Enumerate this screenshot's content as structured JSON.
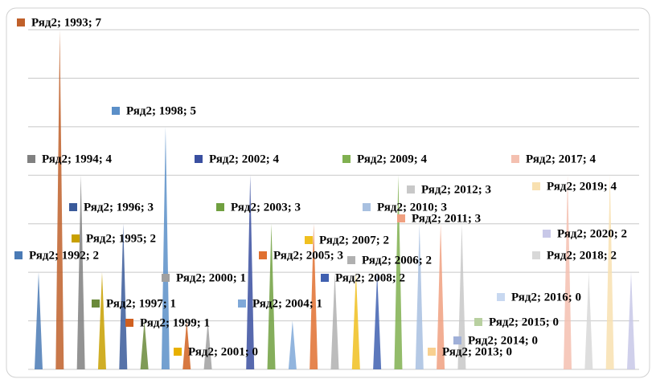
{
  "chart_data": {
    "type": "spike",
    "categories": [
      "1992",
      "1993",
      "1994",
      "1995",
      "1996",
      "1997",
      "1998",
      "1999",
      "2000",
      "2001",
      "2002",
      "2003",
      "2004",
      "2005",
      "2006",
      "2007",
      "2008",
      "2009",
      "2010",
      "2011",
      "2012",
      "2013",
      "2014",
      "2015",
      "2016",
      "2017",
      "2018",
      "2019",
      "2020"
    ],
    "values": [
      2,
      7,
      4,
      2,
      3,
      1,
      5,
      1,
      1,
      0,
      4,
      3,
      1,
      3,
      2,
      2,
      2,
      4,
      3,
      3,
      3,
      0,
      0,
      0,
      0,
      4,
      2,
      4,
      2
    ],
    "value_labels": [
      "Ряд2; 1992; 2",
      "Ряд2; 1993; 7",
      "Ряд2; 1994; 4",
      "Ряд2; 1995; 2",
      "Ряд2; 1996; 3",
      "Ряд2; 1997; 1",
      "Ряд2; 1998; 5",
      "Ряд2; 1999; 1",
      "Ряд2; 2000; 1",
      "Ряд2; 2001; 0",
      "Ряд2; 2002; 4",
      "Ряд2; 2003; 3",
      "Ряд2; 2004; 1",
      "Ряд2; 2005; 3",
      "Ряд2; 2006; 2",
      "Ряд2; 2007; 2",
      "Ряд2; 2008; 2",
      "Ряд2; 2009; 4",
      "Ряд2; 2010; 3",
      "Ряд2; 2011; 3",
      "Ряд2; 2012; 3",
      "Ряд2; 2013; 0",
      "Ряд2; 2014; 0",
      "Ряд2; 2015; 0",
      "Ряд2; 2016; 0",
      "Ряд2; 2017; 4",
      "Ряд2; 2018; 2",
      "Ряд2; 2019; 4",
      "Ряд2; 2020; 2"
    ],
    "colors": [
      "#4a7ab5",
      "#c0602a",
      "#808080",
      "#c8a000",
      "#3a5a9a",
      "#6a8a3a",
      "#5b8fc8",
      "#d06020",
      "#a0a0a0",
      "#e8b000",
      "#3a4fa0",
      "#70a040",
      "#7fa8d8",
      "#e07030",
      "#b0b0b0",
      "#f0c020",
      "#4060b0",
      "#80b050",
      "#a8c0e0",
      "#f0a080",
      "#c8c8c8",
      "#f8d090",
      "#a0b0d8",
      "#b8d0a0",
      "#c8d8f0",
      "#f4c0b0",
      "#d8d8d8",
      "#f8e0b0",
      "#c8c8e8"
    ],
    "ylim": [
      0,
      7
    ],
    "yticks": [
      0,
      1,
      2,
      3,
      4,
      5,
      6,
      7
    ],
    "grid": true
  }
}
